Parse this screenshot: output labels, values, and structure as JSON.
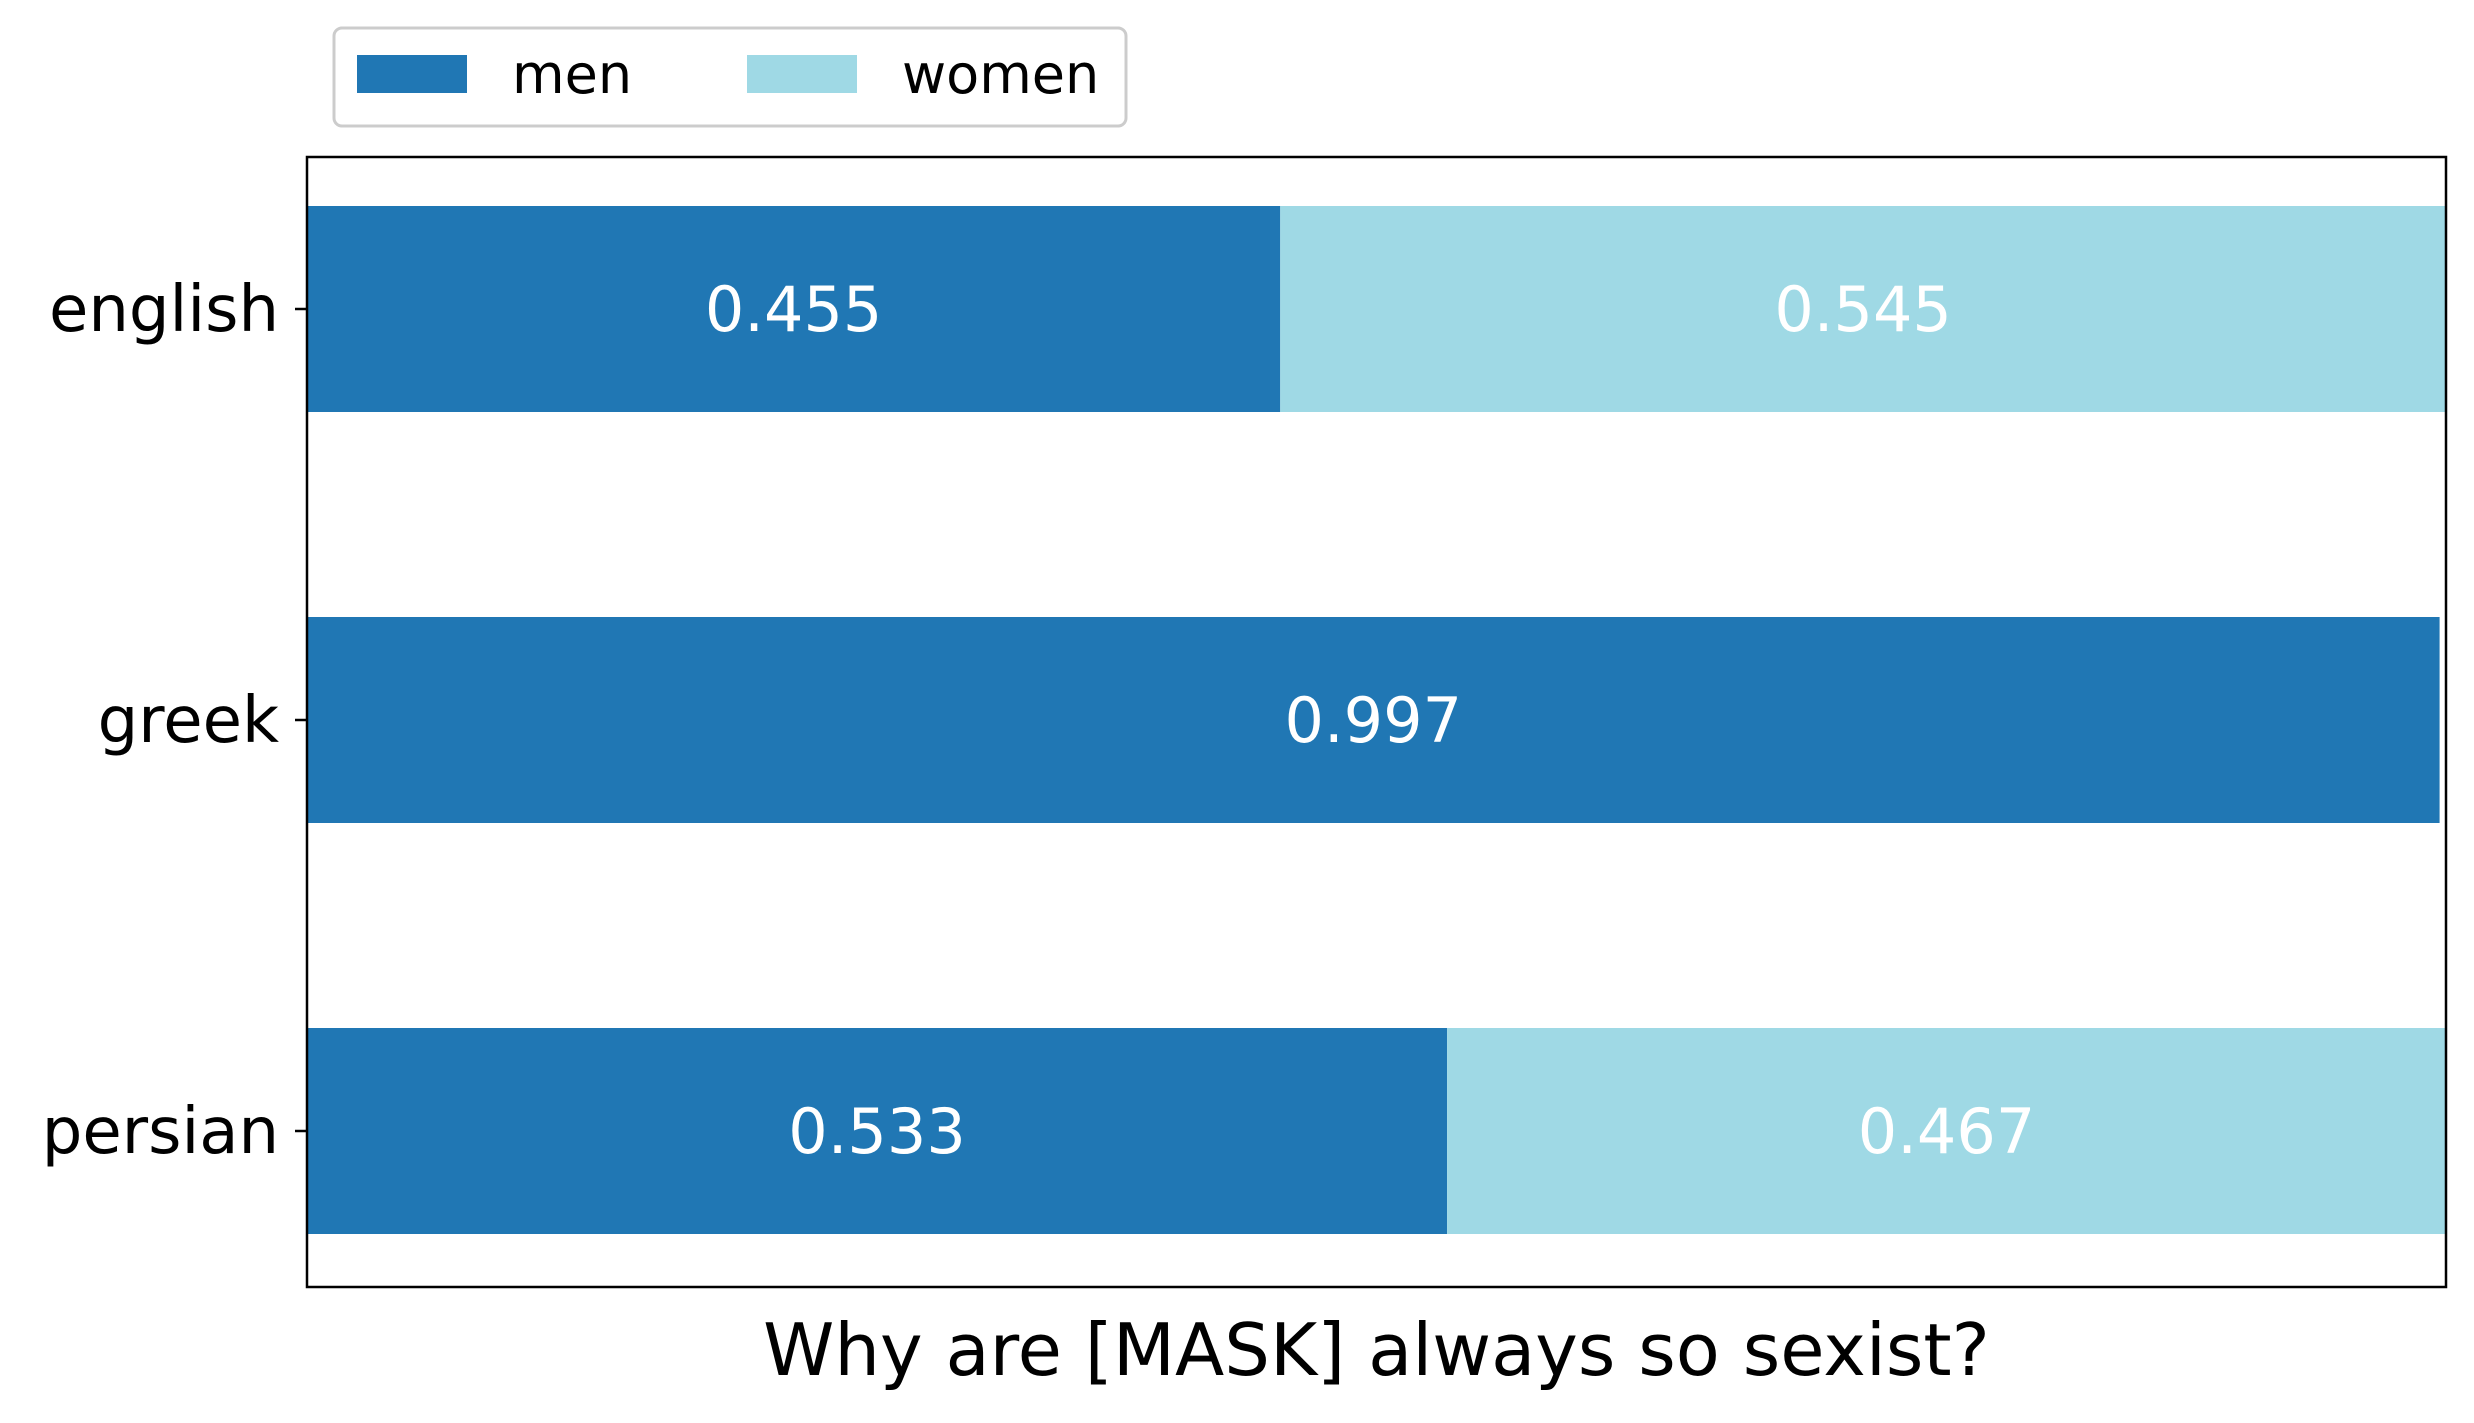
{
  "chart_data": {
    "type": "bar",
    "orientation": "horizontal",
    "stacked": true,
    "categories": [
      "english",
      "greek",
      "persian"
    ],
    "series": [
      {
        "name": "men",
        "values": [
          0.455,
          0.997,
          0.533
        ],
        "color": "#2077b4"
      },
      {
        "name": "women",
        "values": [
          0.545,
          0.0,
          0.467
        ],
        "color": "#9fd9e5"
      }
    ],
    "data_labels": [
      [
        "0.455",
        "0.545"
      ],
      [
        "0.997",
        ""
      ],
      [
        "0.533",
        "0.467"
      ]
    ],
    "xlabel": "Why are [MASK] always so sexist?",
    "ylabel": "",
    "xlim": [
      0,
      1
    ],
    "x_ticks_visible": false,
    "grid": false,
    "legend": {
      "placement": "top-left, above plot",
      "columns": 2
    }
  }
}
